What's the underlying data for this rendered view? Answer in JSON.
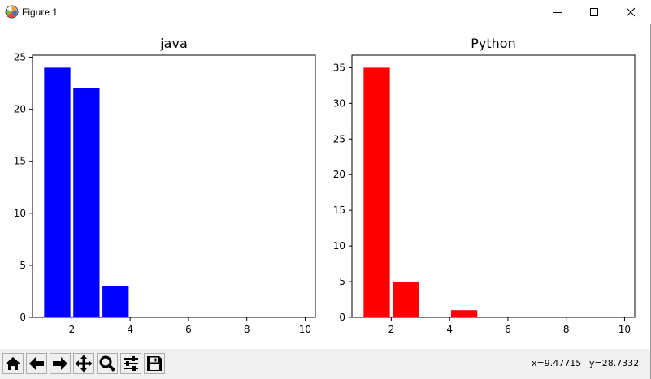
{
  "window": {
    "title": "Figure 1",
    "app_icon": "matplotlib-logo-icon",
    "controls": [
      "minimize-icon",
      "maximize-icon",
      "close-icon"
    ]
  },
  "toolbar": {
    "buttons": [
      {
        "name": "home-button",
        "icon": "home-icon"
      },
      {
        "name": "back-button",
        "icon": "arrow-left-icon"
      },
      {
        "name": "forward-button",
        "icon": "arrow-right-icon"
      },
      {
        "name": "pan-button",
        "icon": "move-icon"
      },
      {
        "name": "zoom-button",
        "icon": "magnifier-icon"
      },
      {
        "name": "subplots-button",
        "icon": "sliders-icon"
      },
      {
        "name": "save-button",
        "icon": "floppy-disk-icon"
      }
    ],
    "coords": {
      "x": "x=9.47715",
      "y": "y=28.7332"
    }
  },
  "chart_data": [
    {
      "type": "bar",
      "title": "java",
      "xlabel": "",
      "ylabel": "",
      "color": "#0000ff",
      "x": [
        1.5,
        2.5,
        3.5
      ],
      "values": [
        24,
        22,
        3
      ],
      "bar_width": 0.9,
      "xlim": [
        0.65,
        10.35
      ],
      "ylim": [
        0,
        25.2
      ],
      "xticks": [
        2,
        4,
        6,
        8,
        10
      ],
      "yticks": [
        0,
        5,
        10,
        15,
        20,
        25
      ],
      "grid": false
    },
    {
      "type": "bar",
      "title": "Python",
      "xlabel": "",
      "ylabel": "",
      "color": "#ff0000",
      "x": [
        1.5,
        2.5,
        4.5
      ],
      "values": [
        35,
        5,
        1
      ],
      "bar_width": 0.9,
      "xlim": [
        0.65,
        10.35
      ],
      "ylim": [
        0,
        36.75
      ],
      "xticks": [
        2,
        4,
        6,
        8,
        10
      ],
      "yticks": [
        0,
        5,
        10,
        15,
        20,
        25,
        30,
        35
      ],
      "grid": false
    }
  ]
}
